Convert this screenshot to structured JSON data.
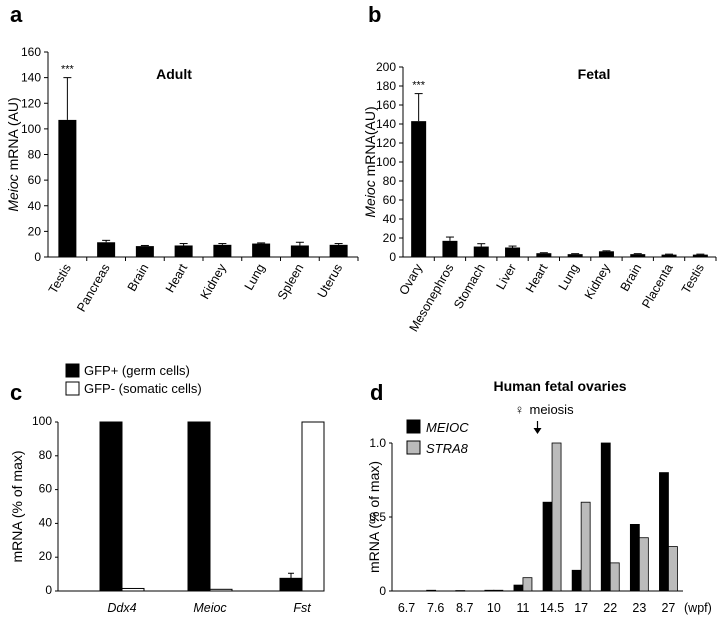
{
  "chart_data": [
    {
      "panel": "a",
      "type": "bar",
      "title": "Adult",
      "ylabel_italic": "Meioc",
      "ylabel_rest": " mRNA (AU)",
      "ylim": [
        0,
        160
      ],
      "yticks": [
        0,
        20,
        40,
        60,
        80,
        100,
        120,
        140,
        160
      ],
      "categories": [
        "Testis",
        "Pancreas",
        "Brain",
        "Heart",
        "Kidney",
        "Lung",
        "Spleen",
        "Uterus"
      ],
      "values": [
        107,
        11.5,
        8.5,
        9,
        9.5,
        10.5,
        9,
        9.5
      ],
      "errors": [
        33,
        1.5,
        0.5,
        1.5,
        1,
        0.5,
        2.5,
        1
      ],
      "annotations": [
        {
          "category": "Testis",
          "text": "***"
        }
      ],
      "color": "#000000"
    },
    {
      "panel": "b",
      "type": "bar",
      "title": "Fetal",
      "ylabel_italic": "Meioc",
      "ylabel_rest": " mRNA(AU)",
      "ylim": [
        0,
        200
      ],
      "yticks": [
        0,
        20,
        40,
        60,
        80,
        100,
        120,
        140,
        160,
        180,
        200
      ],
      "categories": [
        "Ovary",
        "Mesonephros",
        "Stomach",
        "Liver",
        "Heart",
        "Lung",
        "Kidney",
        "Brain",
        "Placenta",
        "Testis"
      ],
      "values": [
        143,
        17,
        11,
        10,
        4,
        3,
        6,
        3,
        2.5,
        2.5
      ],
      "errors": [
        29,
        4,
        3,
        1.5,
        0.5,
        0.5,
        0.5,
        0.5,
        0.5,
        0.5
      ],
      "annotations": [
        {
          "category": "Ovary",
          "text": "***"
        }
      ],
      "color": "#000000"
    },
    {
      "panel": "c",
      "type": "bar",
      "ylabel": "mRNA (% of max)",
      "ylim": [
        0,
        100
      ],
      "yticks": [
        0,
        20,
        40,
        60,
        80,
        100
      ],
      "categories": [
        "Ddx4",
        "Meioc",
        "Fst"
      ],
      "series": [
        {
          "name": "GFP+ (germ cells)",
          "color": "#000000",
          "values": [
            100,
            100,
            7.5
          ],
          "errors": [
            0,
            0,
            3
          ]
        },
        {
          "name": "GFP- (somatic cells)",
          "color": "#ffffff",
          "values": [
            1.5,
            1,
            100
          ],
          "errors": [
            0,
            0,
            0
          ]
        }
      ]
    },
    {
      "panel": "d",
      "type": "bar",
      "title": "Human fetal ovaries",
      "ylabel": "mRNA (% of max)",
      "ylim": [
        0,
        1.0
      ],
      "yticks": [
        0,
        0.5,
        1.0
      ],
      "ytick_labels": [
        "0",
        "0.5",
        "1.0"
      ],
      "categories": [
        "6.7",
        "7.6",
        "8.7",
        "10",
        "11",
        "14.5",
        "17",
        "22",
        "23",
        "27"
      ],
      "x_unit": "(wpf)",
      "event_marker": {
        "symbol": "♀",
        "text": "meiosis",
        "between": [
          "11",
          "14.5"
        ]
      },
      "series": [
        {
          "name": "MEIOC",
          "color": "#000000",
          "values": [
            0,
            0.005,
            0.003,
            0.005,
            0.04,
            0.6,
            0.14,
            1.0,
            0.45,
            0.8
          ]
        },
        {
          "name": "STRA8",
          "color": "#bbbbbb",
          "values": [
            0,
            0,
            0,
            0.005,
            0.09,
            1.0,
            0.6,
            0.19,
            0.36,
            0.3
          ]
        }
      ]
    }
  ]
}
